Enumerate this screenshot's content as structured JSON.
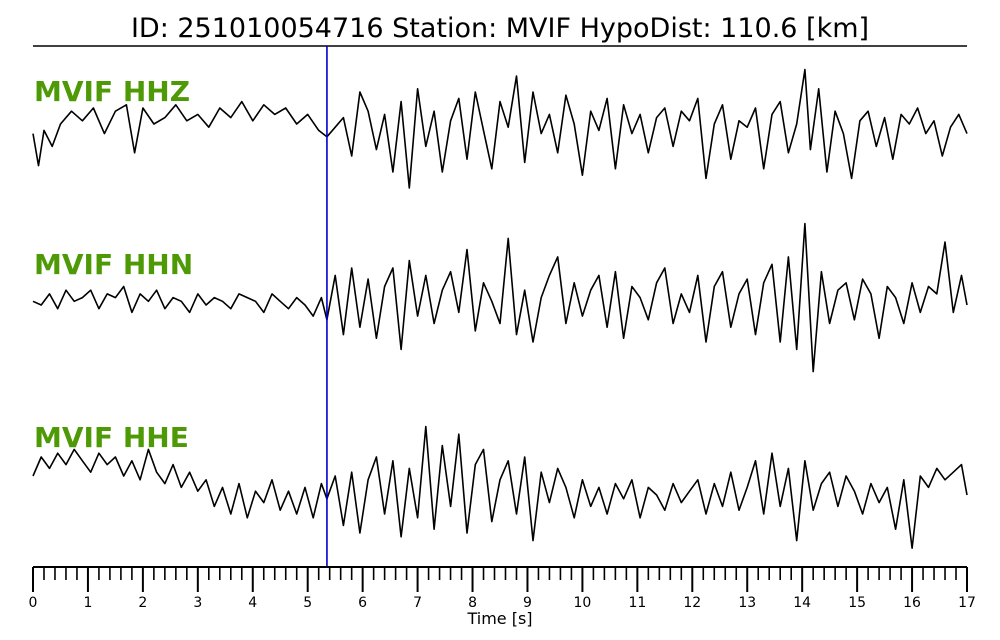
{
  "title": "ID: 251010054716   Station: MVIF   HypoDist:    110.6 [km]",
  "colors": {
    "trace": "#000000",
    "label": "#4e9a06",
    "pick": "#0000cc",
    "axis": "#000000"
  },
  "chart_data": {
    "type": "line",
    "xlabel": "Time [s]",
    "xlim": [
      0,
      17
    ],
    "major_ticks": [
      0,
      1,
      2,
      3,
      4,
      5,
      6,
      7,
      8,
      9,
      10,
      11,
      12,
      13,
      14,
      15,
      16,
      17
    ],
    "minor_tick_step": 0.2,
    "pick_time": 5.35,
    "series": [
      {
        "name": "MVIF HHZ",
        "x": [
          0.0,
          0.1,
          0.2,
          0.35,
          0.5,
          0.7,
          0.9,
          1.1,
          1.3,
          1.5,
          1.7,
          1.85,
          2.0,
          2.2,
          2.4,
          2.6,
          2.8,
          3.0,
          3.2,
          3.4,
          3.6,
          3.8,
          4.0,
          4.2,
          4.4,
          4.6,
          4.8,
          5.0,
          5.2,
          5.35,
          5.5,
          5.65,
          5.8,
          5.95,
          6.1,
          6.25,
          6.4,
          6.55,
          6.7,
          6.85,
          7.0,
          7.15,
          7.3,
          7.45,
          7.6,
          7.75,
          7.9,
          8.05,
          8.2,
          8.35,
          8.5,
          8.65,
          8.8,
          8.95,
          9.1,
          9.25,
          9.4,
          9.55,
          9.7,
          9.85,
          10.0,
          10.15,
          10.3,
          10.45,
          10.6,
          10.75,
          10.9,
          11.05,
          11.2,
          11.35,
          11.5,
          11.65,
          11.8,
          11.95,
          12.1,
          12.25,
          12.4,
          12.55,
          12.7,
          12.85,
          13.0,
          13.15,
          13.3,
          13.45,
          13.6,
          13.75,
          13.9,
          14.05,
          14.15,
          14.3,
          14.45,
          14.6,
          14.75,
          14.9,
          15.05,
          15.2,
          15.35,
          15.5,
          15.65,
          15.8,
          15.95,
          16.1,
          16.25,
          16.4,
          16.55,
          16.7,
          16.85,
          17.0
        ],
        "y": [
          0.2,
          -0.8,
          0.3,
          -0.2,
          0.5,
          0.9,
          0.6,
          1.0,
          0.2,
          0.9,
          1.1,
          -0.4,
          1.0,
          0.5,
          0.7,
          1.1,
          0.6,
          0.8,
          0.4,
          1.0,
          0.7,
          1.2,
          0.6,
          1.1,
          0.8,
          1.0,
          0.5,
          0.8,
          0.3,
          0.1,
          0.4,
          0.7,
          -0.5,
          1.5,
          0.9,
          -0.3,
          0.8,
          -1.0,
          1.2,
          -1.5,
          1.6,
          -0.2,
          0.9,
          -1.0,
          0.6,
          1.3,
          -0.6,
          1.5,
          0.3,
          -0.9,
          1.2,
          0.4,
          2.0,
          -0.7,
          1.5,
          0.2,
          0.8,
          -0.4,
          1.4,
          0.5,
          -1.1,
          0.9,
          0.3,
          1.3,
          -0.9,
          1.1,
          0.2,
          0.8,
          -0.4,
          0.7,
          1.0,
          -0.2,
          0.9,
          0.6,
          1.3,
          -1.2,
          0.5,
          1.1,
          -0.6,
          0.6,
          0.4,
          1.0,
          -0.9,
          0.8,
          1.2,
          -0.4,
          0.5,
          2.2,
          -0.3,
          1.6,
          -1.0,
          0.9,
          0.2,
          -1.2,
          0.6,
          0.9,
          -0.2,
          0.7,
          -0.6,
          0.8,
          0.5,
          1.0,
          0.2,
          0.6,
          -0.5,
          0.4,
          0.8,
          0.2
        ]
      },
      {
        "name": "MVIF HHN",
        "x": [
          0.0,
          0.15,
          0.3,
          0.45,
          0.6,
          0.75,
          0.9,
          1.05,
          1.2,
          1.35,
          1.5,
          1.65,
          1.8,
          1.95,
          2.1,
          2.25,
          2.4,
          2.55,
          2.7,
          2.85,
          3.0,
          3.15,
          3.3,
          3.45,
          3.6,
          3.75,
          3.9,
          4.05,
          4.2,
          4.35,
          4.5,
          4.65,
          4.8,
          4.95,
          5.1,
          5.25,
          5.35,
          5.5,
          5.65,
          5.8,
          5.95,
          6.1,
          6.25,
          6.4,
          6.55,
          6.7,
          6.85,
          7.0,
          7.15,
          7.3,
          7.45,
          7.6,
          7.75,
          7.9,
          8.05,
          8.2,
          8.35,
          8.5,
          8.65,
          8.8,
          8.95,
          9.1,
          9.25,
          9.4,
          9.55,
          9.7,
          9.85,
          10.0,
          10.15,
          10.3,
          10.45,
          10.6,
          10.75,
          10.9,
          11.05,
          11.2,
          11.35,
          11.5,
          11.65,
          11.8,
          11.95,
          12.1,
          12.25,
          12.4,
          12.55,
          12.7,
          12.85,
          13.0,
          13.15,
          13.3,
          13.45,
          13.6,
          13.75,
          13.9,
          14.05,
          14.2,
          14.35,
          14.5,
          14.65,
          14.8,
          14.95,
          15.1,
          15.25,
          15.4,
          15.55,
          15.7,
          15.85,
          16.0,
          16.15,
          16.3,
          16.45,
          16.6,
          16.75,
          16.9,
          17.0
        ],
        "y": [
          0.1,
          0.0,
          0.3,
          -0.1,
          0.4,
          0.1,
          0.2,
          0.4,
          -0.1,
          0.3,
          0.2,
          0.5,
          -0.2,
          0.3,
          0.1,
          0.4,
          -0.1,
          0.2,
          0.1,
          -0.2,
          0.3,
          0.0,
          0.2,
          0.1,
          -0.1,
          0.3,
          0.2,
          0.1,
          -0.2,
          0.3,
          0.1,
          -0.1,
          0.2,
          0.0,
          -0.3,
          0.2,
          -0.4,
          0.8,
          -0.8,
          1.0,
          -0.6,
          0.7,
          -0.9,
          0.5,
          1.0,
          -1.2,
          1.2,
          -0.3,
          0.8,
          -0.5,
          0.4,
          0.9,
          -0.2,
          1.5,
          -0.7,
          0.6,
          0.1,
          -0.5,
          1.8,
          -0.8,
          0.4,
          -1.0,
          0.2,
          0.8,
          1.3,
          -0.5,
          0.6,
          -0.3,
          0.4,
          0.8,
          -0.6,
          0.9,
          -0.9,
          0.5,
          0.2,
          -0.4,
          0.6,
          1.0,
          -0.5,
          0.3,
          -0.2,
          0.8,
          -1.0,
          0.5,
          0.9,
          -0.6,
          0.3,
          0.7,
          -0.8,
          0.6,
          1.1,
          -1.0,
          1.3,
          -1.2,
          2.2,
          -1.8,
          0.9,
          -0.5,
          0.4,
          0.6,
          -0.4,
          0.7,
          0.3,
          -0.9,
          0.5,
          0.2,
          -0.5,
          0.6,
          -0.2,
          0.5,
          0.3,
          1.7,
          -0.2,
          0.8,
          0.0
        ]
      },
      {
        "name": "MVIF HHE",
        "x": [
          0.0,
          0.15,
          0.3,
          0.45,
          0.6,
          0.75,
          0.9,
          1.05,
          1.2,
          1.35,
          1.5,
          1.65,
          1.8,
          1.95,
          2.1,
          2.25,
          2.4,
          2.55,
          2.7,
          2.85,
          3.0,
          3.15,
          3.3,
          3.45,
          3.6,
          3.75,
          3.9,
          4.05,
          4.2,
          4.35,
          4.5,
          4.65,
          4.8,
          4.95,
          5.1,
          5.25,
          5.35,
          5.5,
          5.65,
          5.8,
          5.95,
          6.1,
          6.25,
          6.4,
          6.55,
          6.7,
          6.85,
          7.0,
          7.15,
          7.3,
          7.45,
          7.6,
          7.75,
          7.9,
          8.05,
          8.2,
          8.35,
          8.5,
          8.65,
          8.8,
          8.95,
          9.1,
          9.25,
          9.4,
          9.55,
          9.7,
          9.85,
          10.0,
          10.15,
          10.3,
          10.45,
          10.6,
          10.75,
          10.9,
          11.05,
          11.2,
          11.35,
          11.5,
          11.65,
          11.8,
          11.95,
          12.1,
          12.25,
          12.4,
          12.55,
          12.7,
          12.85,
          13.0,
          13.15,
          13.3,
          13.45,
          13.6,
          13.75,
          13.9,
          14.05,
          14.2,
          14.35,
          14.5,
          14.65,
          14.8,
          14.95,
          15.1,
          15.25,
          15.4,
          15.55,
          15.7,
          15.85,
          16.0,
          16.15,
          16.3,
          16.45,
          16.6,
          16.75,
          16.9,
          17.0
        ],
        "y": [
          0.5,
          1.0,
          0.7,
          1.1,
          0.8,
          1.2,
          0.9,
          0.6,
          1.1,
          0.8,
          1.0,
          0.5,
          0.9,
          0.4,
          1.2,
          0.6,
          0.3,
          0.8,
          0.2,
          0.6,
          0.1,
          0.4,
          -0.3,
          0.2,
          -0.5,
          0.3,
          -0.6,
          0.1,
          -0.2,
          0.4,
          -0.4,
          0.1,
          -0.5,
          0.2,
          -0.6,
          0.3,
          -0.1,
          0.5,
          -0.8,
          0.6,
          -1.0,
          0.4,
          1.0,
          -0.5,
          0.9,
          -1.1,
          0.7,
          -0.6,
          1.8,
          -0.9,
          1.3,
          -0.3,
          1.6,
          -1.0,
          0.8,
          1.2,
          -0.7,
          0.4,
          0.9,
          -0.5,
          1.0,
          -1.2,
          0.6,
          -0.2,
          0.7,
          0.2,
          -0.6,
          0.4,
          -0.3,
          0.2,
          -0.5,
          0.3,
          -0.1,
          0.4,
          -0.6,
          0.2,
          0.0,
          -0.4,
          0.3,
          -0.2,
          0.1,
          0.4,
          -0.5,
          0.3,
          -0.3,
          0.6,
          -0.4,
          0.2,
          0.9,
          -0.5,
          1.1,
          -0.3,
          0.7,
          -1.2,
          0.9,
          -0.4,
          0.3,
          0.6,
          -0.3,
          0.5,
          0.1,
          -0.5,
          0.3,
          -0.2,
          0.2,
          -0.9,
          0.4,
          -1.4,
          0.5,
          0.2,
          0.7,
          0.4,
          0.6,
          0.8,
          0.0
        ]
      }
    ]
  }
}
